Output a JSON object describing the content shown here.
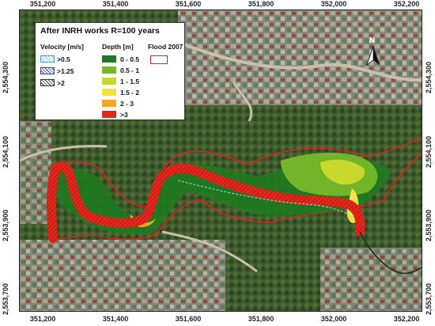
{
  "map": {
    "title": "After INRH works R=100 years",
    "north_label": "N",
    "x_ticks": [
      "351,200",
      "351,400",
      "351,600",
      "351,800",
      "352,000",
      "352,200"
    ],
    "y_ticks": [
      "2,554,300",
      "2,554,100",
      "2,553,900",
      "2,553,700"
    ],
    "legend": {
      "velocity_header": "Velocity [m/s]",
      "depth_header": "Depth [m]",
      "flood_header": "Flood 2007",
      "velocity_items": [
        ">0.5",
        ">1.25",
        ">2"
      ],
      "depth_items": [
        "0 - 0.5",
        "0.5 - 1",
        "1 - 1.5",
        "1.5 - 2",
        "2 - 3",
        ">3"
      ],
      "depth_colors": [
        "#1f7a1f",
        "#77b82a",
        "#c8d92b",
        "#f2e43a",
        "#f5a623",
        "#e8261c"
      ],
      "flood_color": "#e02020"
    }
  }
}
